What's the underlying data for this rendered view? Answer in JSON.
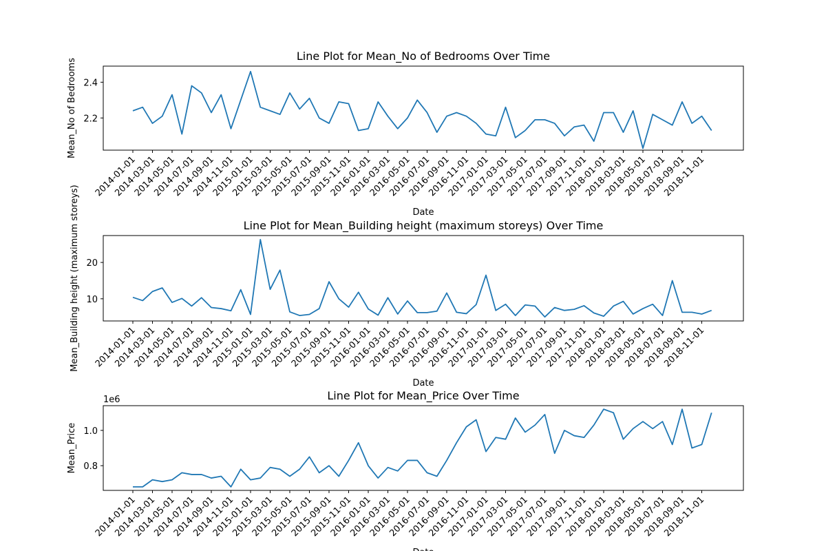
{
  "chart_data": [
    {
      "type": "line",
      "title": "Line Plot for Mean_No of Bedrooms Over Time",
      "xlabel": "Date",
      "ylabel": "Mean_No of Bedrooms",
      "x_tick_labels": [
        "2014-01-01",
        "2014-03-01",
        "2014-05-01",
        "2014-07-01",
        "2014-09-01",
        "2014-11-01",
        "2015-01-01",
        "2015-03-01",
        "2015-05-01",
        "2015-07-01",
        "2015-09-01",
        "2015-11-01",
        "2016-01-01",
        "2016-03-01",
        "2016-05-01",
        "2016-07-01",
        "2016-09-01",
        "2016-11-01",
        "2017-01-01",
        "2017-03-01",
        "2017-05-01",
        "2017-07-01",
        "2017-09-01",
        "2017-11-01",
        "2018-01-01",
        "2018-03-01",
        "2018-05-01",
        "2018-07-01",
        "2018-09-01",
        "2018-11-01"
      ],
      "y_ticks": [
        2.2,
        2.4
      ],
      "y_tick_labels": [
        "2.2",
        "2.4"
      ],
      "ylim": [
        2.02,
        2.49
      ],
      "offset_text": "",
      "color": "#1f77b4",
      "series": [
        {
          "x_start": "2014-01-01",
          "x_step": "month",
          "values": [
            2.24,
            2.26,
            2.17,
            2.21,
            2.33,
            2.11,
            2.38,
            2.34,
            2.23,
            2.33,
            2.14,
            2.3,
            2.46,
            2.26,
            2.24,
            2.22,
            2.34,
            2.25,
            2.31,
            2.2,
            2.17,
            2.29,
            2.28,
            2.13,
            2.14,
            2.29,
            2.21,
            2.14,
            2.2,
            2.3,
            2.23,
            2.12,
            2.21,
            2.23,
            2.21,
            2.17,
            2.11,
            2.1,
            2.26,
            2.09,
            2.13,
            2.19,
            2.19,
            2.17,
            2.1,
            2.15,
            2.16,
            2.07,
            2.23,
            2.23,
            2.12,
            2.24,
            2.03,
            2.22,
            2.19,
            2.16,
            2.29,
            2.17,
            2.21,
            2.13
          ]
        }
      ]
    },
    {
      "type": "line",
      "title": "Line Plot for Mean_Building height (maximum storeys) Over Time",
      "xlabel": "Date",
      "ylabel": "Mean_Building height (maximum storeys)",
      "x_tick_labels": [
        "2014-01-01",
        "2014-03-01",
        "2014-05-01",
        "2014-07-01",
        "2014-09-01",
        "2014-11-01",
        "2015-01-01",
        "2015-03-01",
        "2015-05-01",
        "2015-07-01",
        "2015-09-01",
        "2015-11-01",
        "2016-01-01",
        "2016-03-01",
        "2016-05-01",
        "2016-07-01",
        "2016-09-01",
        "2016-11-01",
        "2017-01-01",
        "2017-03-01",
        "2017-05-01",
        "2017-07-01",
        "2017-09-01",
        "2017-11-01",
        "2018-01-01",
        "2018-03-01",
        "2018-05-01",
        "2018-07-01",
        "2018-09-01",
        "2018-11-01"
      ],
      "y_ticks": [
        10,
        20
      ],
      "y_tick_labels": [
        "10",
        "20"
      ],
      "ylim": [
        3.9,
        27.4
      ],
      "offset_text": "",
      "color": "#1f77b4",
      "series": [
        {
          "x_start": "2014-01-01",
          "x_step": "month",
          "values": [
            10.4,
            9.5,
            12,
            13,
            9,
            10.1,
            8,
            10.3,
            7.6,
            7.3,
            6.7,
            12.5,
            5.7,
            26.3,
            12.6,
            17.9,
            6.4,
            5.4,
            5.7,
            7.3,
            14.7,
            10,
            7.7,
            11.8,
            7.2,
            5.5,
            10.3,
            5.8,
            9.4,
            6.2,
            6.2,
            6.6,
            11.6,
            6.3,
            5.9,
            8.4,
            16.5,
            6.8,
            8.5,
            5.4,
            8.3,
            8,
            5,
            7.6,
            6.8,
            7.1,
            8.1,
            6.1,
            5.2,
            8,
            9.3,
            5.8,
            7.3,
            8.5,
            5.4,
            15,
            6.3,
            6.3,
            5.8,
            6.8
          ]
        }
      ]
    },
    {
      "type": "line",
      "title": "Line Plot for Mean_Price Over Time",
      "xlabel": "Date",
      "ylabel": "Mean_Price",
      "x_tick_labels": [
        "2014-01-01",
        "2014-03-01",
        "2014-05-01",
        "2014-07-01",
        "2014-09-01",
        "2014-11-01",
        "2015-01-01",
        "2015-03-01",
        "2015-05-01",
        "2015-07-01",
        "2015-09-01",
        "2015-11-01",
        "2016-01-01",
        "2016-03-01",
        "2016-05-01",
        "2016-07-01",
        "2016-09-01",
        "2016-11-01",
        "2017-01-01",
        "2017-03-01",
        "2017-05-01",
        "2017-07-01",
        "2017-09-01",
        "2017-11-01",
        "2018-01-01",
        "2018-03-01",
        "2018-05-01",
        "2018-07-01",
        "2018-09-01",
        "2018-11-01"
      ],
      "y_ticks": [
        0.8,
        1.0
      ],
      "y_tick_labels": [
        "0.8",
        "1.0"
      ],
      "ylim": [
        0.66,
        1.14
      ],
      "offset_text": "1e6",
      "color": "#1f77b4",
      "series": [
        {
          "x_start": "2014-01-01",
          "x_step": "month",
          "values": [
            0.68,
            0.68,
            0.72,
            0.71,
            0.72,
            0.76,
            0.75,
            0.75,
            0.73,
            0.74,
            0.68,
            0.78,
            0.72,
            0.73,
            0.79,
            0.78,
            0.74,
            0.78,
            0.85,
            0.76,
            0.8,
            0.74,
            0.83,
            0.93,
            0.8,
            0.73,
            0.79,
            0.77,
            0.83,
            0.83,
            0.76,
            0.74,
            0.83,
            0.93,
            1.02,
            1.06,
            0.88,
            0.96,
            0.95,
            1.07,
            0.99,
            1.03,
            1.09,
            0.87,
            1.0,
            0.97,
            0.96,
            1.03,
            1.12,
            1.1,
            0.95,
            1.01,
            1.05,
            1.01,
            1.05,
            0.92,
            1.12,
            0.9,
            0.92,
            1.1
          ]
        }
      ]
    }
  ]
}
